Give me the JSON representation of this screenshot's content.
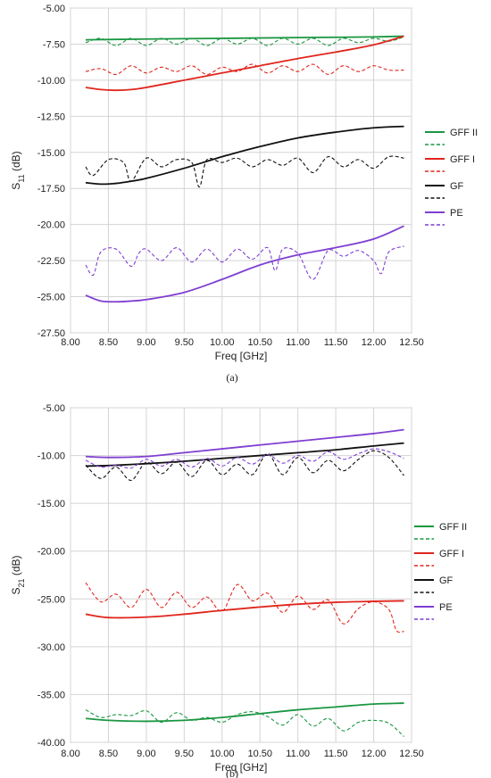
{
  "chart_data": [
    {
      "id": "a",
      "type": "line",
      "caption": "(a)",
      "xlabel": "Freq [GHz]",
      "ylabel_main": "S",
      "ylabel_sub": "11",
      "ylabel_unit": " (dB)",
      "xlim": [
        8.0,
        12.5
      ],
      "ylim": [
        -27.5,
        -5.0
      ],
      "xticks": [
        8.0,
        8.5,
        9.0,
        9.5,
        10.0,
        10.5,
        11.0,
        11.5,
        12.0,
        12.5
      ],
      "xtick_labels": [
        "8.00",
        "8.50",
        "9.00",
        "9.50",
        "10.00",
        "10.50",
        "11.00",
        "11.50",
        "12.00",
        "12.50"
      ],
      "yticks": [
        -5.0,
        -7.5,
        -10.0,
        -12.5,
        -15.0,
        -17.5,
        -20.0,
        -22.5,
        -25.0,
        -27.5
      ],
      "ytick_labels": [
        "-5.00",
        "-7.50",
        "-10.00",
        "-12.50",
        "-15.00",
        "-17.50",
        "-20.00",
        "-22.50",
        "-25.00",
        "-27.50"
      ],
      "grid": true,
      "legend": "right",
      "series": [
        {
          "name": "GFF II",
          "color": "#1a9641",
          "style": "solid",
          "x": [
            8.2,
            9.0,
            10.0,
            11.0,
            12.0,
            12.4
          ],
          "y": [
            -7.2,
            -7.15,
            -7.1,
            -7.05,
            -7.0,
            -6.95
          ]
        },
        {
          "name": "GFF II",
          "color": "#1a9641",
          "style": "dashed",
          "x": [
            8.2,
            8.4,
            8.6,
            8.8,
            9.0,
            9.2,
            9.4,
            9.6,
            9.8,
            10.0,
            10.2,
            10.4,
            10.6,
            10.8,
            11.0,
            11.2,
            11.4,
            11.6,
            11.8,
            12.0,
            12.2,
            12.4
          ],
          "y": [
            -7.4,
            -7.1,
            -7.6,
            -7.1,
            -7.6,
            -7.1,
            -7.5,
            -7.1,
            -7.6,
            -7.1,
            -7.5,
            -7.1,
            -7.6,
            -7.1,
            -7.5,
            -7.1,
            -7.6,
            -7.1,
            -7.4,
            -7.1,
            -7.3,
            -7.0
          ]
        },
        {
          "name": "GFF I",
          "color": "#e0261d",
          "style": "solid",
          "x": [
            8.2,
            8.4,
            8.6,
            8.8,
            9.0,
            9.5,
            10.0,
            10.5,
            11.0,
            11.5,
            12.0,
            12.4
          ],
          "y": [
            -10.5,
            -10.65,
            -10.7,
            -10.65,
            -10.5,
            -10.0,
            -9.5,
            -9.0,
            -8.5,
            -8.05,
            -7.55,
            -6.95
          ]
        },
        {
          "name": "GFF I",
          "color": "#e0261d",
          "style": "dashed",
          "x": [
            8.2,
            8.4,
            8.6,
            8.8,
            9.0,
            9.2,
            9.4,
            9.6,
            9.8,
            10.0,
            10.2,
            10.4,
            10.6,
            10.8,
            11.0,
            11.2,
            11.4,
            11.6,
            11.8,
            12.0,
            12.2,
            12.4
          ],
          "y": [
            -9.4,
            -9.2,
            -9.6,
            -9.0,
            -9.5,
            -9.1,
            -9.4,
            -9.0,
            -9.6,
            -9.1,
            -9.4,
            -8.9,
            -9.5,
            -9.0,
            -9.4,
            -8.9,
            -9.6,
            -9.0,
            -9.4,
            -9.0,
            -9.3,
            -9.3
          ]
        },
        {
          "name": "GF",
          "color": "#111111",
          "style": "solid",
          "x": [
            8.2,
            8.4,
            8.6,
            8.8,
            9.0,
            9.5,
            10.0,
            10.5,
            11.0,
            11.5,
            12.0,
            12.4
          ],
          "y": [
            -17.1,
            -17.2,
            -17.15,
            -17.0,
            -16.8,
            -16.1,
            -15.3,
            -14.6,
            -14.0,
            -13.6,
            -13.3,
            -13.2
          ]
        },
        {
          "name": "GF",
          "color": "#111111",
          "style": "dashed",
          "x": [
            8.2,
            8.3,
            8.5,
            8.7,
            8.8,
            9.0,
            9.2,
            9.4,
            9.6,
            9.7,
            9.8,
            10.0,
            10.2,
            10.4,
            10.6,
            10.8,
            11.0,
            11.2,
            11.4,
            11.6,
            11.8,
            12.0,
            12.2,
            12.4
          ],
          "y": [
            -16.0,
            -16.6,
            -15.5,
            -15.7,
            -17.0,
            -15.4,
            -16.0,
            -15.5,
            -15.7,
            -17.4,
            -15.5,
            -15.7,
            -15.4,
            -16.0,
            -15.5,
            -15.9,
            -15.4,
            -16.4,
            -15.3,
            -16.0,
            -15.5,
            -16.1,
            -15.3,
            -15.4
          ]
        },
        {
          "name": "PE",
          "color": "#7f3fd1",
          "style": "solid",
          "x": [
            8.2,
            8.4,
            8.6,
            8.8,
            9.0,
            9.5,
            10.0,
            10.5,
            11.0,
            11.5,
            12.0,
            12.4
          ],
          "y": [
            -24.9,
            -25.3,
            -25.35,
            -25.3,
            -25.2,
            -24.7,
            -23.8,
            -22.8,
            -22.1,
            -21.6,
            -21.0,
            -20.1
          ]
        },
        {
          "name": "PE",
          "color": "#7f3fd1",
          "style": "dashed",
          "x": [
            8.2,
            8.3,
            8.4,
            8.6,
            8.8,
            8.9,
            9.0,
            9.2,
            9.4,
            9.6,
            9.8,
            10.0,
            10.2,
            10.4,
            10.6,
            10.7,
            10.8,
            11.0,
            11.2,
            11.4,
            11.6,
            11.8,
            12.0,
            12.1,
            12.2,
            12.4
          ],
          "y": [
            -22.8,
            -23.5,
            -21.9,
            -21.7,
            -22.9,
            -22.0,
            -21.7,
            -22.5,
            -21.6,
            -22.6,
            -21.7,
            -22.6,
            -21.7,
            -22.4,
            -21.6,
            -23.2,
            -21.7,
            -22.0,
            -23.8,
            -21.8,
            -22.2,
            -21.8,
            -22.5,
            -23.4,
            -21.9,
            -21.5
          ]
        }
      ]
    },
    {
      "id": "b",
      "type": "line",
      "caption": "(b)",
      "xlabel": "Freq [GHz]",
      "ylabel_main": "S",
      "ylabel_sub": "21",
      "ylabel_unit": " (dB)",
      "xlim": [
        8.0,
        12.5
      ],
      "ylim": [
        -40.0,
        -5.0
      ],
      "xticks": [
        8.0,
        8.5,
        9.0,
        9.5,
        10.0,
        10.5,
        11.0,
        11.5,
        12.0,
        12.5
      ],
      "xtick_labels": [
        "8.00",
        "8.50",
        "9.00",
        "9.50",
        "10.00",
        "10.50",
        "11.00",
        "11.50",
        "12.00",
        "12.50"
      ],
      "yticks": [
        -5.0,
        -10.0,
        -15.0,
        -20.0,
        -25.0,
        -30.0,
        -35.0,
        -40.0
      ],
      "ytick_labels": [
        "-5.00",
        "-10.00",
        "-15.00",
        "-20.00",
        "-25.00",
        "-30.00",
        "-35.00",
        "-40.00"
      ],
      "grid": true,
      "legend": "right",
      "series": [
        {
          "name": "GFF II",
          "color": "#1a9641",
          "style": "solid",
          "x": [
            8.2,
            8.5,
            9.0,
            9.5,
            10.0,
            10.5,
            11.0,
            11.5,
            12.0,
            12.4
          ],
          "y": [
            -37.5,
            -37.7,
            -37.8,
            -37.7,
            -37.4,
            -37.0,
            -36.6,
            -36.3,
            -36.0,
            -35.9
          ]
        },
        {
          "name": "GFF II",
          "color": "#1a9641",
          "style": "dashed",
          "x": [
            8.2,
            8.4,
            8.6,
            8.8,
            9.0,
            9.2,
            9.4,
            9.6,
            9.8,
            10.0,
            10.2,
            10.4,
            10.6,
            10.8,
            11.0,
            11.2,
            11.4,
            11.6,
            11.8,
            12.0,
            12.2,
            12.4
          ],
          "y": [
            -36.6,
            -37.4,
            -37.1,
            -37.2,
            -36.7,
            -37.9,
            -36.9,
            -37.7,
            -37.4,
            -37.9,
            -37.1,
            -36.8,
            -37.3,
            -38.2,
            -37.1,
            -38.3,
            -37.5,
            -38.8,
            -37.9,
            -37.7,
            -38.0,
            -39.4
          ]
        },
        {
          "name": "GFF I",
          "color": "#e0261d",
          "style": "solid",
          "x": [
            8.2,
            8.5,
            9.0,
            9.5,
            10.0,
            10.5,
            11.0,
            11.5,
            12.0,
            12.4
          ],
          "y": [
            -26.6,
            -26.95,
            -26.9,
            -26.6,
            -26.2,
            -25.85,
            -25.55,
            -25.35,
            -25.25,
            -25.2
          ]
        },
        {
          "name": "GFF I",
          "color": "#e0261d",
          "style": "dashed",
          "x": [
            8.2,
            8.4,
            8.6,
            8.8,
            9.0,
            9.2,
            9.4,
            9.6,
            9.8,
            10.0,
            10.2,
            10.4,
            10.6,
            10.8,
            11.0,
            11.2,
            11.4,
            11.6,
            11.8,
            12.0,
            12.2,
            12.3,
            12.4
          ],
          "y": [
            -23.3,
            -25.3,
            -24.5,
            -25.9,
            -24.0,
            -25.9,
            -24.3,
            -25.9,
            -24.8,
            -26.3,
            -23.5,
            -25.2,
            -24.4,
            -26.4,
            -24.7,
            -26.1,
            -25.1,
            -27.6,
            -26.0,
            -25.3,
            -26.1,
            -28.3,
            -28.4
          ]
        },
        {
          "name": "GF",
          "color": "#111111",
          "style": "solid",
          "x": [
            8.2,
            8.5,
            9.0,
            9.5,
            10.0,
            10.5,
            11.0,
            11.5,
            12.0,
            12.4
          ],
          "y": [
            -11.1,
            -11.05,
            -10.85,
            -10.6,
            -10.3,
            -10.0,
            -9.7,
            -9.4,
            -9.0,
            -8.7
          ]
        },
        {
          "name": "GF",
          "color": "#111111",
          "style": "dashed",
          "x": [
            8.2,
            8.4,
            8.6,
            8.8,
            9.0,
            9.2,
            9.4,
            9.6,
            9.8,
            10.0,
            10.2,
            10.4,
            10.6,
            10.8,
            11.0,
            11.2,
            11.4,
            11.6,
            11.8,
            12.0,
            12.2,
            12.4
          ],
          "y": [
            -11.0,
            -12.4,
            -11.2,
            -12.6,
            -10.7,
            -11.9,
            -10.7,
            -12.2,
            -10.5,
            -12.0,
            -10.9,
            -12.0,
            -9.8,
            -12.0,
            -10.2,
            -11.8,
            -10.5,
            -11.6,
            -10.4,
            -9.5,
            -10.2,
            -12.1
          ]
        },
        {
          "name": "PE",
          "color": "#7f3fd1",
          "style": "solid",
          "x": [
            8.2,
            8.5,
            9.0,
            9.5,
            10.0,
            10.5,
            11.0,
            11.5,
            12.0,
            12.4
          ],
          "y": [
            -10.1,
            -10.2,
            -10.1,
            -9.7,
            -9.3,
            -8.9,
            -8.5,
            -8.1,
            -7.7,
            -7.3
          ]
        },
        {
          "name": "PE",
          "color": "#7f3fd1",
          "style": "dashed",
          "x": [
            8.2,
            8.4,
            8.6,
            8.8,
            9.0,
            9.2,
            9.4,
            9.6,
            9.8,
            10.0,
            10.2,
            10.4,
            10.6,
            10.8,
            11.0,
            11.2,
            11.4,
            11.6,
            11.8,
            12.0,
            12.2,
            12.4
          ],
          "y": [
            -10.5,
            -11.2,
            -11.0,
            -11.3,
            -10.4,
            -11.1,
            -10.4,
            -11.2,
            -10.3,
            -11.1,
            -10.2,
            -10.9,
            -9.9,
            -10.8,
            -10.0,
            -10.6,
            -9.6,
            -10.4,
            -9.8,
            -9.3,
            -9.6,
            -10.3
          ]
        }
      ]
    }
  ],
  "legend_entries": [
    {
      "label": "GFF II",
      "color": "#1a9641"
    },
    {
      "label": "GFF I",
      "color": "#e0261d"
    },
    {
      "label": "GF",
      "color": "#111111"
    },
    {
      "label": "PE",
      "color": "#7f3fd1"
    }
  ]
}
